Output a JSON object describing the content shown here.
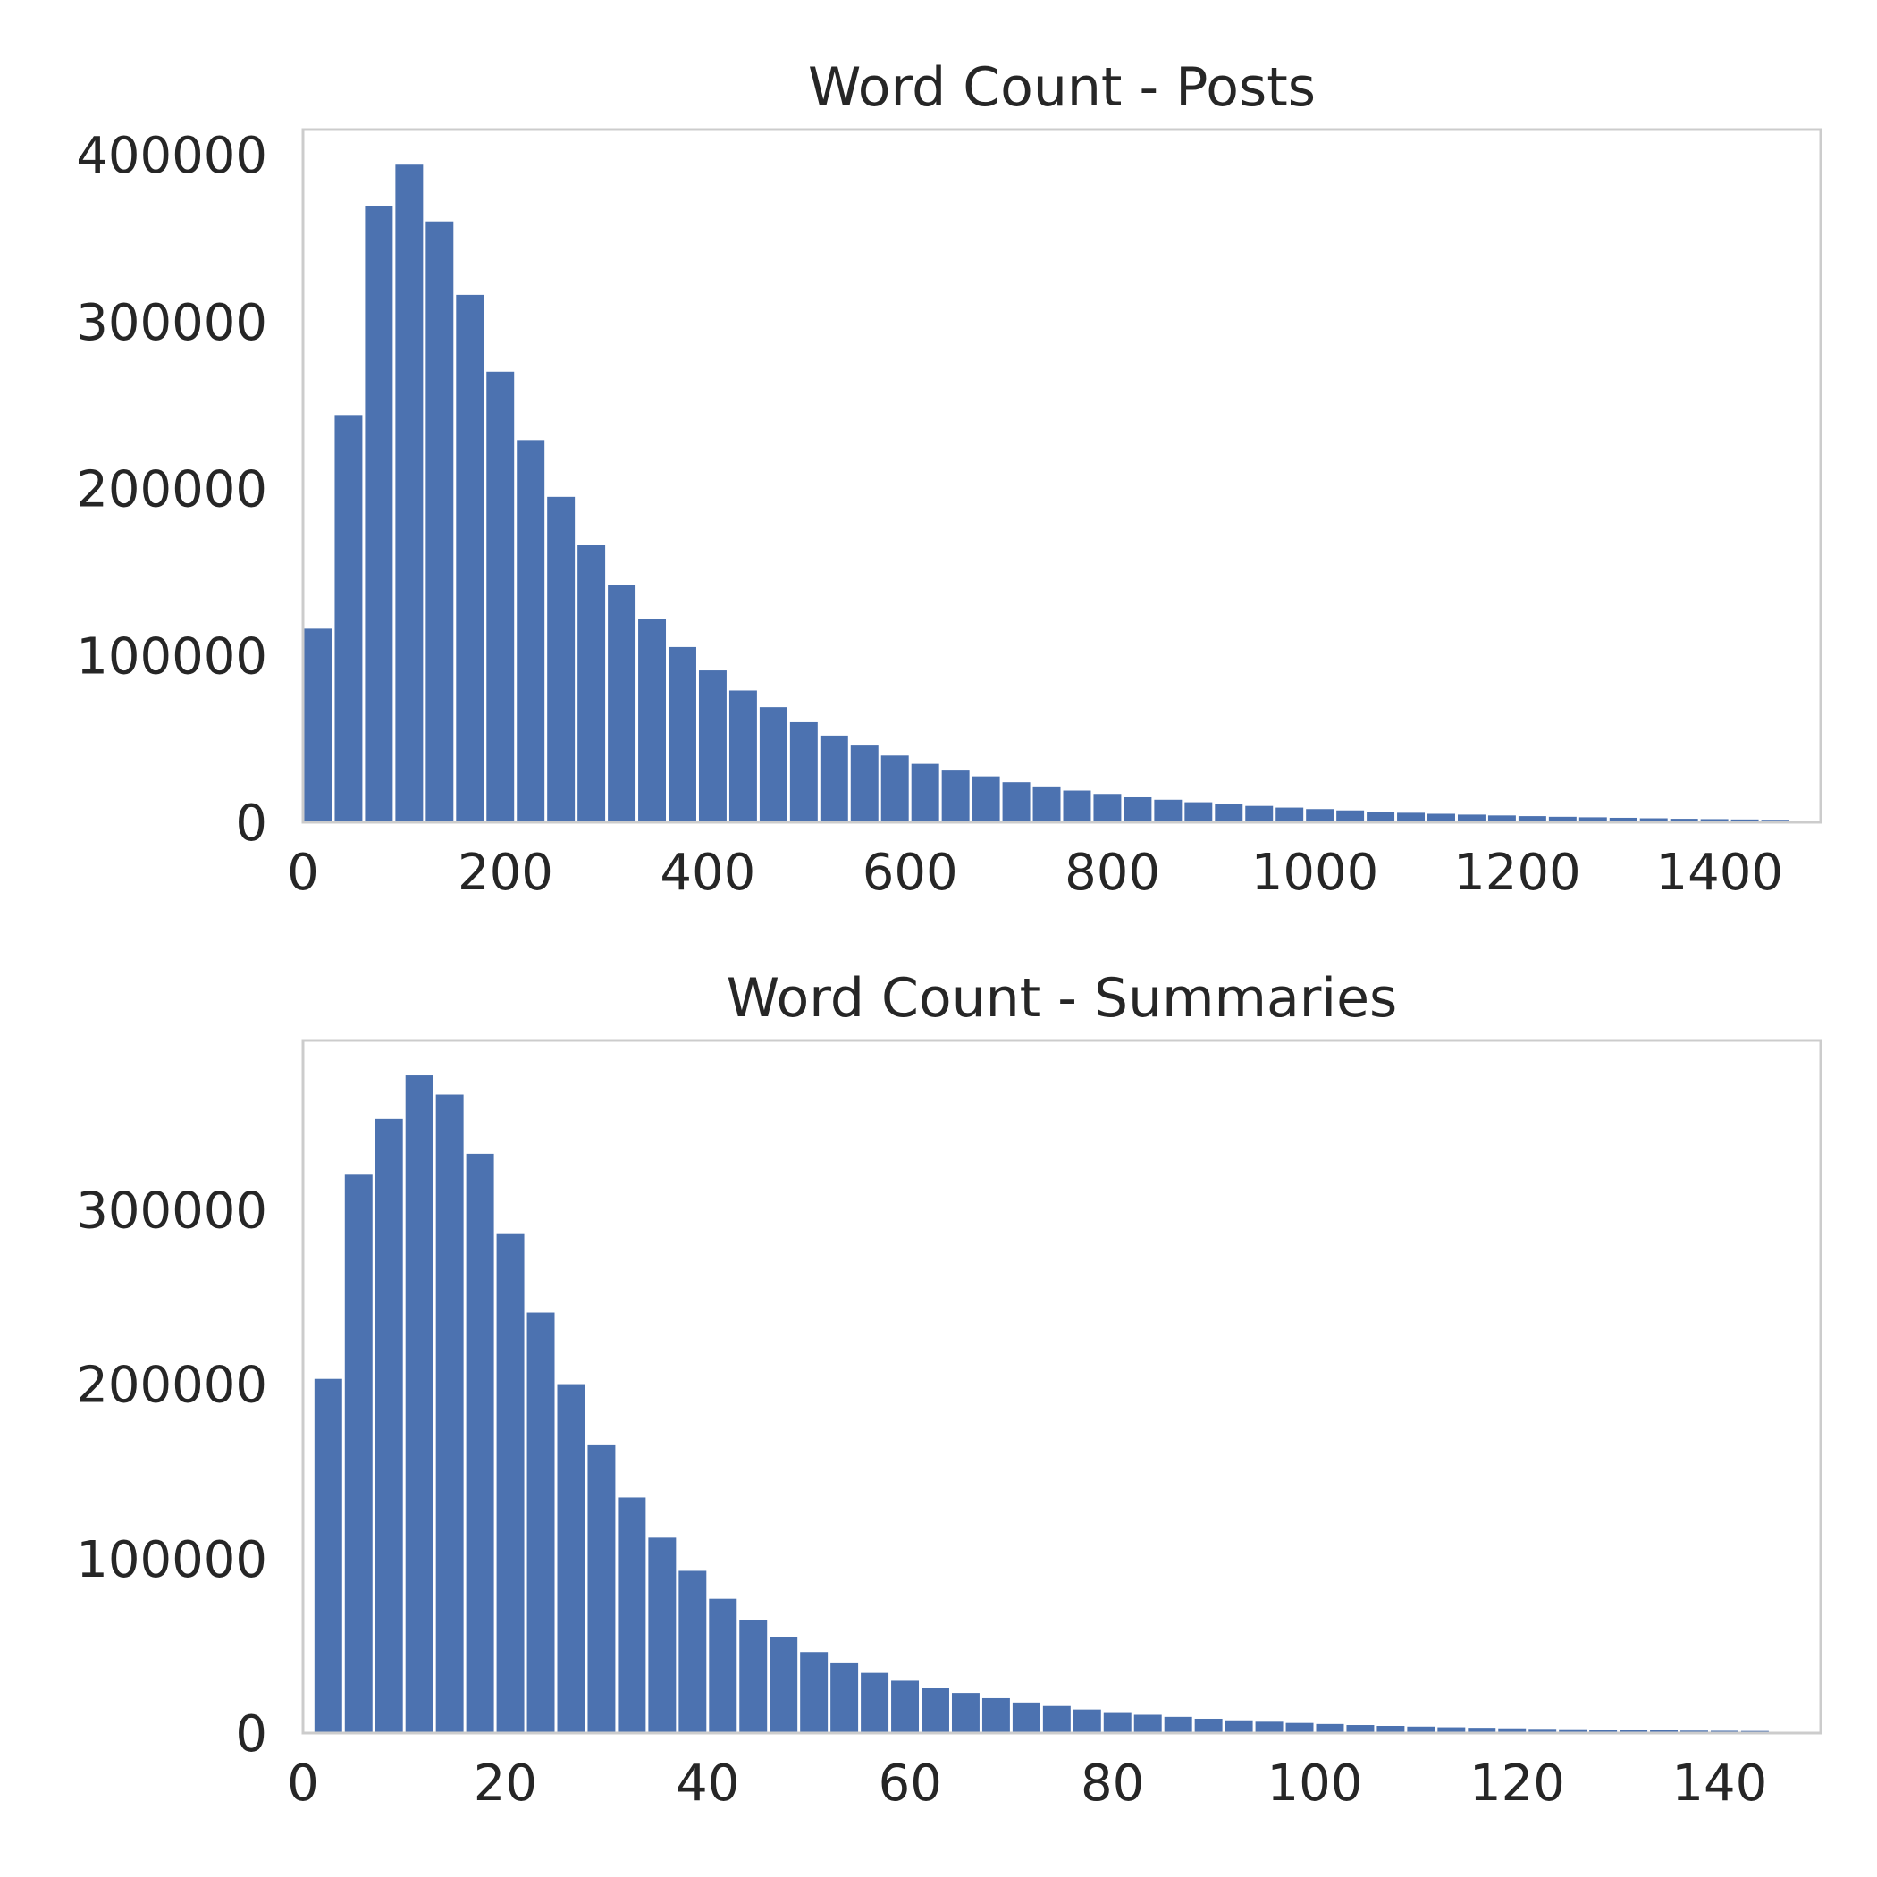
{
  "chart_data": [
    {
      "type": "bar",
      "title": "Word Count - Posts",
      "xlabel": "",
      "ylabel": "",
      "xlim": [
        0,
        1500
      ],
      "ylim": [
        0,
        415000
      ],
      "grid": false,
      "bar_color": "#4c72b0",
      "x_ticks": [
        "0",
        "200",
        "400",
        "600",
        "800",
        "1000",
        "1200",
        "1400"
      ],
      "y_ticks": [
        "0",
        "100000",
        "200000",
        "300000",
        "400000"
      ],
      "bin_width": 30,
      "bin_starts": [
        0,
        30,
        60,
        90,
        120,
        150,
        180,
        210,
        240,
        270,
        300,
        330,
        360,
        390,
        420,
        450,
        480,
        510,
        540,
        570,
        600,
        630,
        660,
        690,
        720,
        750,
        780,
        810,
        840,
        870,
        900,
        930,
        960,
        990,
        1020,
        1050,
        1080,
        1110,
        1140,
        1170,
        1200,
        1230,
        1260,
        1290,
        1320,
        1350,
        1380,
        1410,
        1440
      ],
      "values": [
        116000,
        244000,
        369000,
        394000,
        360000,
        316000,
        270000,
        229000,
        195000,
        166000,
        142000,
        122000,
        105000,
        91000,
        79000,
        69000,
        60000,
        52000,
        46000,
        40000,
        35000,
        31000,
        27500,
        24000,
        21500,
        19000,
        17000,
        15000,
        13500,
        12000,
        11000,
        9800,
        8800,
        7900,
        7100,
        6400,
        5700,
        5100,
        4600,
        4100,
        3700,
        3300,
        3000,
        2700,
        2400,
        2100,
        1900,
        1700,
        1500
      ]
    },
    {
      "type": "bar",
      "title": "Word Count - Summaries",
      "xlabel": "",
      "ylabel": "",
      "xlim": [
        0,
        150
      ],
      "ylim": [
        0,
        397000
      ],
      "grid": false,
      "bar_color": "#4c72b0",
      "x_ticks": [
        "0",
        "20",
        "40",
        "60",
        "80",
        "100",
        "120",
        "140"
      ],
      "y_ticks": [
        "0",
        "100000",
        "200000",
        "300000"
      ],
      "bin_width": 3,
      "bin_starts": [
        1,
        4,
        7,
        10,
        13,
        16,
        19,
        22,
        25,
        28,
        31,
        34,
        37,
        40,
        43,
        46,
        49,
        52,
        55,
        58,
        61,
        64,
        67,
        70,
        73,
        76,
        79,
        82,
        85,
        88,
        91,
        94,
        97,
        100,
        103,
        106,
        109,
        112,
        115,
        118,
        121,
        124,
        127,
        130,
        133,
        136,
        139,
        142
      ],
      "values": [
        203000,
        320000,
        352000,
        377000,
        366000,
        332000,
        286000,
        241000,
        200000,
        165000,
        135000,
        112000,
        93000,
        77000,
        65000,
        55000,
        46500,
        40000,
        34500,
        30000,
        26000,
        23000,
        20000,
        17500,
        15500,
        13500,
        12000,
        10500,
        9300,
        8200,
        7300,
        6500,
        5800,
        5200,
        4600,
        4100,
        3700,
        3300,
        3000,
        2700,
        2400,
        2200,
        2000,
        1800,
        1600,
        1400,
        1300,
        1200
      ]
    }
  ]
}
